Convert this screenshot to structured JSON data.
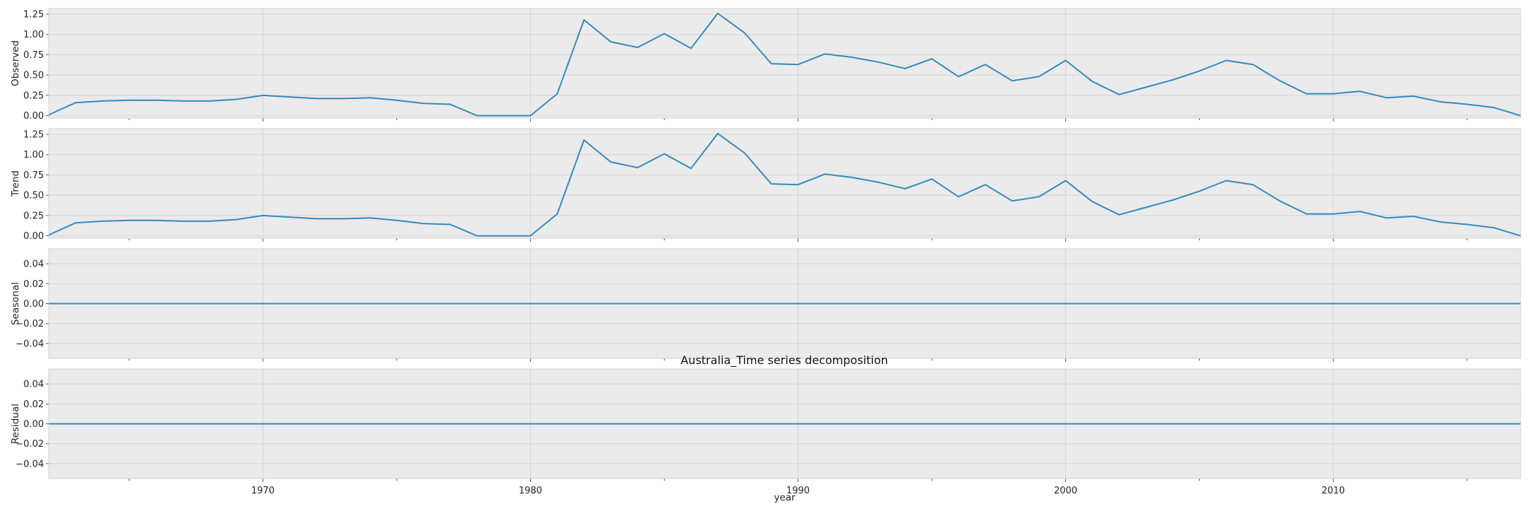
{
  "chart_data": {
    "type": "line",
    "title": "Australia_Time series decomposition",
    "xlabel": "year",
    "xlim": [
      1962,
      2017
    ],
    "xticks": [
      1970,
      1980,
      1990,
      2000,
      2010
    ],
    "line_color": "#348abd",
    "grid": true,
    "x": [
      1962,
      1963,
      1964,
      1965,
      1966,
      1967,
      1968,
      1969,
      1970,
      1971,
      1972,
      1973,
      1974,
      1975,
      1976,
      1977,
      1978,
      1979,
      1980,
      1981,
      1982,
      1983,
      1984,
      1985,
      1986,
      1987,
      1988,
      1989,
      1990,
      1991,
      1992,
      1993,
      1994,
      1995,
      1996,
      1997,
      1998,
      1999,
      2000,
      2001,
      2002,
      2003,
      2004,
      2005,
      2006,
      2007,
      2008,
      2009,
      2010,
      2011,
      2012,
      2013,
      2014,
      2015,
      2016,
      2017
    ],
    "panels": [
      {
        "ylabel": "Observed",
        "ylim": [
          -0.03,
          1.32
        ],
        "yticks": [
          "0.00",
          "0.25",
          "0.50",
          "0.75",
          "1.00",
          "1.25"
        ],
        "values": [
          0.01,
          0.16,
          0.18,
          0.19,
          0.19,
          0.18,
          0.18,
          0.2,
          0.25,
          0.23,
          0.21,
          0.21,
          0.22,
          0.19,
          0.15,
          0.14,
          0.0,
          0.0,
          0.0,
          0.27,
          1.18,
          0.91,
          0.84,
          1.01,
          0.83,
          1.26,
          1.02,
          0.64,
          0.63,
          0.76,
          0.72,
          0.66,
          0.58,
          0.7,
          0.48,
          0.63,
          0.43,
          0.48,
          0.68,
          0.42,
          0.26,
          0.35,
          0.44,
          0.55,
          0.68,
          0.63,
          0.43,
          0.27,
          0.27,
          0.3,
          0.22,
          0.24,
          0.17,
          0.14,
          0.1,
          0.0
        ]
      },
      {
        "ylabel": "Trend",
        "ylim": [
          -0.03,
          1.32
        ],
        "yticks": [
          "0.00",
          "0.25",
          "0.50",
          "0.75",
          "1.00",
          "1.25"
        ],
        "values": [
          0.01,
          0.16,
          0.18,
          0.19,
          0.19,
          0.18,
          0.18,
          0.2,
          0.25,
          0.23,
          0.21,
          0.21,
          0.22,
          0.19,
          0.15,
          0.14,
          0.0,
          0.0,
          0.0,
          0.27,
          1.18,
          0.91,
          0.84,
          1.01,
          0.83,
          1.26,
          1.02,
          0.64,
          0.63,
          0.76,
          0.72,
          0.66,
          0.58,
          0.7,
          0.48,
          0.63,
          0.43,
          0.48,
          0.68,
          0.42,
          0.26,
          0.35,
          0.44,
          0.55,
          0.68,
          0.63,
          0.43,
          0.27,
          0.27,
          0.3,
          0.22,
          0.24,
          0.17,
          0.14,
          0.1,
          0.0
        ]
      },
      {
        "ylabel": "Seasonal",
        "ylim": [
          -0.055,
          0.055
        ],
        "yticks": [
          "0.04",
          "0.02",
          "0.00",
          "−0.02",
          "−0.04"
        ],
        "ytick_values": [
          0.04,
          0.02,
          0.0,
          -0.02,
          -0.04
        ],
        "values": [
          0.0,
          0.0,
          0.0,
          0.0,
          0.0,
          0.0,
          0.0,
          0.0,
          0.0,
          0.0,
          0.0,
          0.0,
          0.0,
          0.0,
          0.0,
          0.0,
          0.0,
          0.0,
          0.0,
          0.0,
          0.0,
          0.0,
          0.0,
          0.0,
          0.0,
          0.0,
          0.0,
          0.0,
          0.0,
          0.0,
          0.0,
          0.0,
          0.0,
          0.0,
          0.0,
          0.0,
          0.0,
          0.0,
          0.0,
          0.0,
          0.0,
          0.0,
          0.0,
          0.0,
          0.0,
          0.0,
          0.0,
          0.0,
          0.0,
          0.0,
          0.0,
          0.0,
          0.0,
          0.0,
          0.0,
          0.0
        ]
      },
      {
        "ylabel": "Residual",
        "ylim": [
          -0.055,
          0.055
        ],
        "yticks": [
          "0.04",
          "0.02",
          "0.00",
          "−0.02",
          "−0.04"
        ],
        "ytick_values": [
          0.04,
          0.02,
          0.0,
          -0.02,
          -0.04
        ],
        "values": [
          0.0,
          0.0,
          0.0,
          0.0,
          0.0,
          0.0,
          0.0,
          0.0,
          0.0,
          0.0,
          0.0,
          0.0,
          0.0,
          0.0,
          0.0,
          0.0,
          0.0,
          0.0,
          0.0,
          0.0,
          0.0,
          0.0,
          0.0,
          0.0,
          0.0,
          0.0,
          0.0,
          0.0,
          0.0,
          0.0,
          0.0,
          0.0,
          0.0,
          0.0,
          0.0,
          0.0,
          0.0,
          0.0,
          0.0,
          0.0,
          0.0,
          0.0,
          0.0,
          0.0,
          0.0,
          0.0,
          0.0,
          0.0,
          0.0,
          0.0,
          0.0,
          0.0,
          0.0,
          0.0,
          0.0,
          0.0
        ]
      }
    ]
  }
}
